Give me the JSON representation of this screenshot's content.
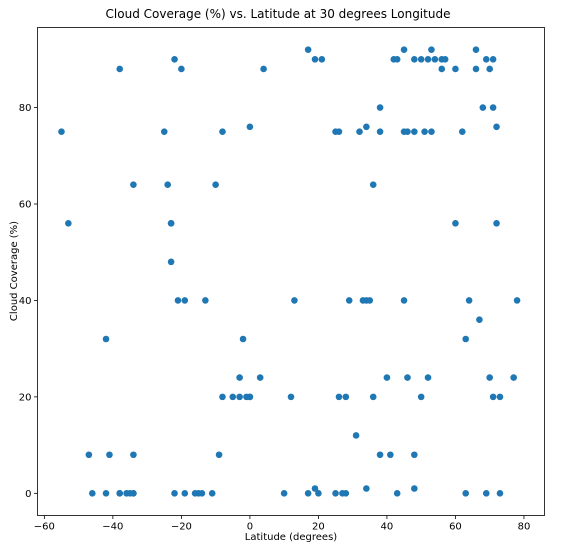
{
  "chart_data": {
    "type": "scatter",
    "title": "Cloud Coverage (%) vs. Latitude at 30 degrees Longitude",
    "xlabel": "Latitude (degrees)",
    "ylabel": "Cloud Coverage (%)",
    "xlim": [
      -62,
      86
    ],
    "ylim": [
      -4.6,
      96.6
    ],
    "xticks": [
      -60,
      -40,
      -20,
      0,
      20,
      40,
      60,
      80
    ],
    "yticks": [
      0,
      20,
      40,
      60,
      80
    ],
    "grid": false,
    "marker_color": "#1f77b4",
    "points": [
      [
        -55,
        75
      ],
      [
        -53,
        56
      ],
      [
        -47,
        8
      ],
      [
        -46,
        0
      ],
      [
        -42,
        0
      ],
      [
        -42,
        32
      ],
      [
        -41,
        8
      ],
      [
        -38,
        88
      ],
      [
        -38,
        0
      ],
      [
        -38,
        0
      ],
      [
        -36,
        0
      ],
      [
        -35,
        0
      ],
      [
        -34,
        0
      ],
      [
        -34,
        0
      ],
      [
        -34,
        8
      ],
      [
        -34,
        64
      ],
      [
        -25,
        75
      ],
      [
        -24,
        64
      ],
      [
        -23,
        56
      ],
      [
        -23,
        56
      ],
      [
        -23,
        48
      ],
      [
        -22,
        90
      ],
      [
        -22,
        0
      ],
      [
        -21,
        40
      ],
      [
        -20,
        88
      ],
      [
        -19,
        40
      ],
      [
        -19,
        0
      ],
      [
        -16,
        0
      ],
      [
        -15,
        0
      ],
      [
        -14,
        0
      ],
      [
        -13,
        40
      ],
      [
        -11,
        0
      ],
      [
        -10,
        64
      ],
      [
        -9,
        8
      ],
      [
        -8,
        75
      ],
      [
        -8,
        20
      ],
      [
        -5,
        20
      ],
      [
        -3,
        24
      ],
      [
        -3,
        20
      ],
      [
        -2,
        32
      ],
      [
        -1,
        20
      ],
      [
        0,
        76
      ],
      [
        0,
        20
      ],
      [
        0,
        20
      ],
      [
        3,
        24
      ],
      [
        4,
        88
      ],
      [
        10,
        0
      ],
      [
        12,
        20
      ],
      [
        13,
        40
      ],
      [
        17,
        92
      ],
      [
        17,
        0
      ],
      [
        19,
        1
      ],
      [
        19,
        90
      ],
      [
        20,
        0
      ],
      [
        21,
        90
      ],
      [
        25,
        75
      ],
      [
        25,
        0
      ],
      [
        26,
        75
      ],
      [
        26,
        20
      ],
      [
        27,
        0
      ],
      [
        28,
        0
      ],
      [
        28,
        20
      ],
      [
        29,
        40
      ],
      [
        31,
        12
      ],
      [
        32,
        75
      ],
      [
        33,
        40
      ],
      [
        34,
        76
      ],
      [
        34,
        40
      ],
      [
        34,
        1
      ],
      [
        35,
        40
      ],
      [
        36,
        64
      ],
      [
        36,
        20
      ],
      [
        38,
        80
      ],
      [
        38,
        75
      ],
      [
        38,
        8
      ],
      [
        40,
        24
      ],
      [
        41,
        8
      ],
      [
        42,
        90
      ],
      [
        43,
        90
      ],
      [
        43,
        0
      ],
      [
        45,
        92
      ],
      [
        45,
        40
      ],
      [
        45,
        75
      ],
      [
        46,
        75
      ],
      [
        46,
        24
      ],
      [
        48,
        8
      ],
      [
        48,
        1
      ],
      [
        48,
        75
      ],
      [
        48,
        90
      ],
      [
        50,
        90
      ],
      [
        50,
        20
      ],
      [
        51,
        75
      ],
      [
        52,
        90
      ],
      [
        52,
        24
      ],
      [
        53,
        92
      ],
      [
        53,
        75
      ],
      [
        54,
        90
      ],
      [
        56,
        88
      ],
      [
        56,
        90
      ],
      [
        57,
        90
      ],
      [
        60,
        88
      ],
      [
        60,
        56
      ],
      [
        62,
        75
      ],
      [
        63,
        32
      ],
      [
        63,
        0
      ],
      [
        64,
        40
      ],
      [
        66,
        92
      ],
      [
        66,
        88
      ],
      [
        67,
        36
      ],
      [
        68,
        80
      ],
      [
        69,
        0
      ],
      [
        69,
        90
      ],
      [
        70,
        88
      ],
      [
        70,
        24
      ],
      [
        71,
        90
      ],
      [
        71,
        80
      ],
      [
        71,
        20
      ],
      [
        72,
        56
      ],
      [
        72,
        76
      ],
      [
        73,
        0
      ],
      [
        73,
        20
      ],
      [
        77,
        24
      ],
      [
        78,
        40
      ]
    ]
  }
}
